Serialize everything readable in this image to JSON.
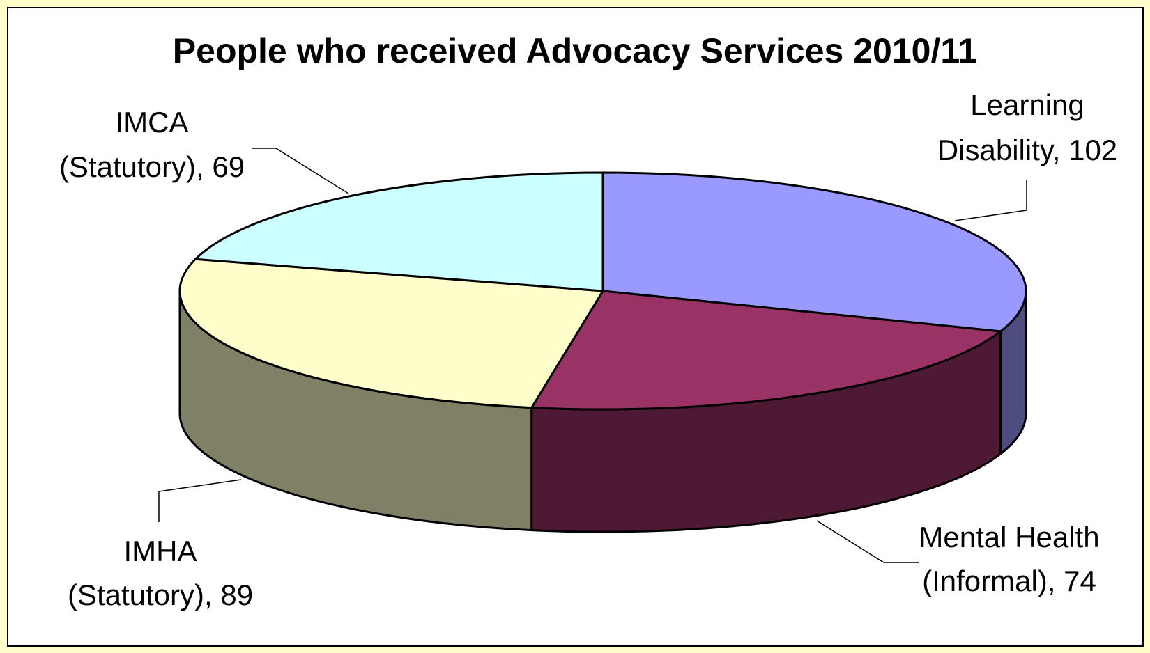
{
  "chart_data": {
    "type": "pie",
    "title": "People who received Advocacy Services 2010/11",
    "legend": "none",
    "slices": [
      {
        "label": "Learning Disability, 102",
        "label_lines": [
          "Learning",
          "Disability, 102"
        ],
        "value": 102,
        "color": "#9999ff",
        "side_color": "#4d4d80"
      },
      {
        "label": "Mental Health (Informal), 74",
        "label_lines": [
          "Mental Health",
          "(Informal), 74"
        ],
        "value": 74,
        "color": "#993366",
        "side_color": "#4d1933"
      },
      {
        "label": "IMHA (Statutory), 89",
        "label_lines": [
          "IMHA",
          "(Statutory), 89"
        ],
        "value": 89,
        "color": "#ffffcc",
        "side_color": "#808066"
      },
      {
        "label": "IMCA (Statutory), 69",
        "label_lines": [
          "IMCA",
          "(Statutory), 69"
        ],
        "value": 69,
        "color": "#ccffff",
        "side_color": "#668080"
      }
    ]
  }
}
